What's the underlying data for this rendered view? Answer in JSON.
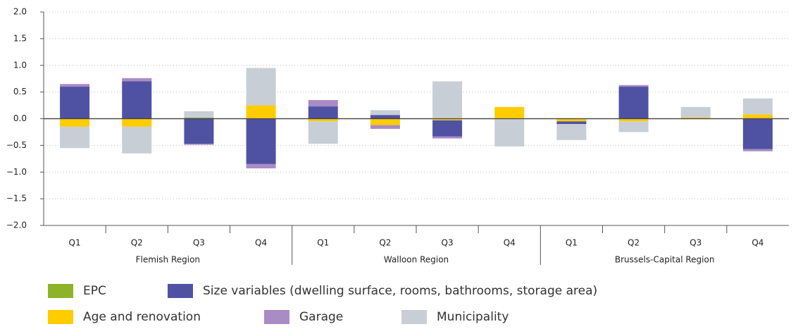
{
  "chart_data": {
    "type": "bar",
    "stacked": true,
    "groups": [
      {
        "name": "Flemish Region",
        "categories": [
          "Q1",
          "Q2",
          "Q3",
          "Q4"
        ]
      },
      {
        "name": "Walloon Region",
        "categories": [
          "Q1",
          "Q2",
          "Q3",
          "Q4"
        ]
      },
      {
        "name": "Brussels-Capital Region",
        "categories": [
          "Q1",
          "Q2",
          "Q3",
          "Q4"
        ]
      }
    ],
    "series": [
      {
        "name": "EPC",
        "color": "#8db32a",
        "values": [
          0,
          0,
          0.02,
          0,
          0,
          0,
          0,
          0,
          0,
          0,
          0,
          0
        ]
      },
      {
        "name": "Age and renovation",
        "color": "#ffcc00",
        "values": [
          -0.15,
          -0.15,
          0,
          0.25,
          -0.05,
          -0.12,
          -0.03,
          0.22,
          -0.05,
          -0.05,
          0.02,
          0.08
        ]
      },
      {
        "name": "Size variables (dwelling surface, rooms, bathrooms, storage area)",
        "color": "#4f52a3",
        "values": [
          0.6,
          0.7,
          -0.47,
          -0.85,
          0.23,
          0.07,
          -0.3,
          0,
          -0.05,
          0.6,
          0,
          -0.57
        ]
      },
      {
        "name": "Garage",
        "color": "#a98bc6",
        "values": [
          0.05,
          0.06,
          -0.02,
          -0.08,
          0.12,
          -0.07,
          -0.04,
          0,
          0,
          0.03,
          0,
          -0.04
        ]
      },
      {
        "name": "Municipality",
        "color": "#c8ced6",
        "values": [
          -0.4,
          -0.5,
          0.12,
          0.7,
          -0.42,
          0.09,
          0.7,
          -0.52,
          -0.3,
          -0.2,
          0.2,
          0.3
        ]
      }
    ],
    "ylim": [
      -2,
      2
    ],
    "yticks": [
      {
        "value": -2,
        "label": "−2.0"
      },
      {
        "value": -1.5,
        "label": "−1.5"
      },
      {
        "value": -1,
        "label": "−1.0"
      },
      {
        "value": -0.5,
        "label": "−0.5"
      },
      {
        "value": 0,
        "label": "0.0"
      },
      {
        "value": 0.5,
        "label": "0.5"
      },
      {
        "value": 1,
        "label": "1.0"
      },
      {
        "value": 1.5,
        "label": "1.5"
      },
      {
        "value": 2,
        "label": "2.0"
      }
    ],
    "grid": true
  }
}
